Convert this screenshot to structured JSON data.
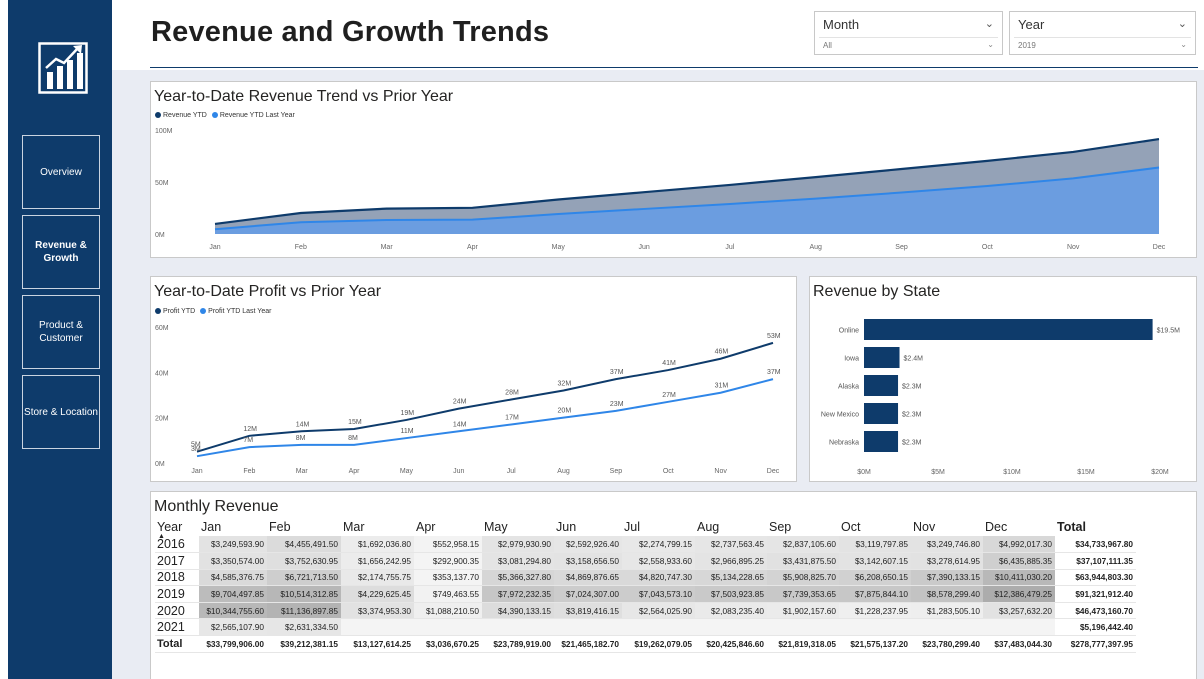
{
  "page": {
    "title": "Revenue and Growth Trends"
  },
  "nav": [
    {
      "label": "Overview",
      "active": false
    },
    {
      "label": "Revenue & Growth",
      "active": true
    },
    {
      "label": "Product & Customer",
      "active": false
    },
    {
      "label": "Store & Location",
      "active": false
    }
  ],
  "slicers": {
    "month": {
      "label": "Month",
      "value": "All"
    },
    "year": {
      "label": "Year",
      "value": "2019"
    }
  },
  "colors": {
    "sidebar": "#0e3b6b",
    "current": "#0e3b6b",
    "prior": "#2f86e8",
    "prior_area": "#6b9de0",
    "current_area": "#8e9db3",
    "bar": "#0e3b6b"
  },
  "revenue_chart": {
    "title": "Year-to-Date Revenue Trend vs Prior Year",
    "legend": [
      "Revenue YTD",
      "Revenue YTD Last Year"
    ],
    "y_ticks": [
      "0M",
      "50M",
      "100M"
    ],
    "months": [
      "Jan",
      "Feb",
      "Mar",
      "Apr",
      "May",
      "Jun",
      "Jul",
      "Aug",
      "Sep",
      "Oct",
      "Nov",
      "Dec"
    ]
  },
  "profit_chart": {
    "title": "Year-to-Date Profit vs Prior Year",
    "legend": [
      "Profit YTD",
      "Profit YTD Last Year"
    ],
    "y_ticks": [
      "0M",
      "20M",
      "40M",
      "60M"
    ],
    "months": [
      "Jan",
      "Feb",
      "Mar",
      "Apr",
      "May",
      "Jun",
      "Jul",
      "Aug",
      "Sep",
      "Oct",
      "Nov",
      "Dec"
    ]
  },
  "state_chart": {
    "title": "Revenue by State",
    "x_ticks": [
      "$0M",
      "$5M",
      "$10M",
      "$15M",
      "$20M"
    ]
  },
  "chart_data": [
    {
      "type": "area",
      "title": "Year-to-Date Revenue Trend vs Prior Year",
      "categories": [
        "Jan",
        "Feb",
        "Mar",
        "Apr",
        "May",
        "Jun",
        "Jul",
        "Aug",
        "Sep",
        "Oct",
        "Nov",
        "Dec"
      ],
      "ylim": [
        0,
        100
      ],
      "series": [
        {
          "name": "Revenue YTD",
          "values": [
            9.7,
            20.2,
            24.4,
            25.2,
            33.2,
            40.2,
            47.2,
            54.7,
            62.5,
            70.3,
            78.9,
            91.3
          ]
        },
        {
          "name": "Revenue YTD Last Year",
          "values": [
            4.6,
            11.3,
            13.5,
            13.8,
            19.2,
            24.1,
            28.9,
            34.0,
            39.9,
            46.1,
            53.5,
            63.9
          ]
        }
      ]
    },
    {
      "type": "line",
      "title": "Year-to-Date Profit vs Prior Year",
      "categories": [
        "Jan",
        "Feb",
        "Mar",
        "Apr",
        "May",
        "Jun",
        "Jul",
        "Aug",
        "Sep",
        "Oct",
        "Nov",
        "Dec"
      ],
      "ylim": [
        0,
        60
      ],
      "series": [
        {
          "name": "Profit YTD",
          "values": [
            5,
            12,
            14,
            15,
            19,
            24,
            28,
            32,
            37,
            41,
            46,
            53
          ],
          "labels": [
            "5M",
            "12M",
            "14M",
            "15M",
            "19M",
            "24M",
            "28M",
            "32M",
            "37M",
            "41M",
            "46M",
            "53M"
          ]
        },
        {
          "name": "Profit YTD Last Year",
          "values": [
            3,
            7,
            8,
            8,
            11,
            14,
            17,
            20,
            23,
            27,
            31,
            37
          ],
          "labels": [
            "3M",
            "7M",
            "8M",
            "8M",
            "11M",
            "14M",
            "17M",
            "20M",
            "23M",
            "27M",
            "31M",
            "37M"
          ]
        }
      ]
    },
    {
      "type": "bar",
      "title": "Revenue by State",
      "categories": [
        "Online",
        "Iowa",
        "Alaska",
        "New Mexico",
        "Nebraska"
      ],
      "values": [
        19.5,
        2.4,
        2.3,
        2.3,
        2.3
      ],
      "labels": [
        "$19.5M",
        "$2.4M",
        "$2.3M",
        "$2.3M",
        "$2.3M"
      ],
      "xlim": [
        0,
        20
      ]
    }
  ],
  "monthly_table": {
    "title": "Monthly Revenue",
    "year_header": "Year",
    "sort_glyph": "▲",
    "columns": [
      "Jan",
      "Feb",
      "Mar",
      "Apr",
      "May",
      "Jun",
      "Jul",
      "Aug",
      "Sep",
      "Oct",
      "Nov",
      "Dec",
      "Total"
    ],
    "rows": [
      {
        "year": "2016",
        "values": [
          "$3,249,593.90",
          "$4,455,491.50",
          "$1,692,036.80",
          "$552,958.15",
          "$2,979,930.90",
          "$2,592,926.40",
          "$2,274,799.15",
          "$2,737,563.45",
          "$2,837,105.60",
          "$3,119,797.85",
          "$3,249,746.80",
          "$4,992,017.30",
          "$34,733,967.80"
        ]
      },
      {
        "year": "2017",
        "values": [
          "$3,350,574.00",
          "$3,752,630.95",
          "$1,656,242.95",
          "$292,900.35",
          "$3,081,294.80",
          "$3,158,656.50",
          "$2,558,933.60",
          "$2,966,895.25",
          "$3,431,875.50",
          "$3,142,607.15",
          "$3,278,614.95",
          "$6,435,885.35",
          "$37,107,111.35"
        ]
      },
      {
        "year": "2018",
        "values": [
          "$4,585,376.75",
          "$6,721,713.50",
          "$2,174,755.75",
          "$353,137.70",
          "$5,366,327.80",
          "$4,869,876.65",
          "$4,820,747.30",
          "$5,134,228.65",
          "$5,908,825.70",
          "$6,208,650.15",
          "$7,390,133.15",
          "$10,411,030.20",
          "$63,944,803.30"
        ]
      },
      {
        "year": "2019",
        "values": [
          "$9,704,497.85",
          "$10,514,312.85",
          "$4,229,625.45",
          "$749,463.55",
          "$7,972,232.35",
          "$7,024,307.00",
          "$7,043,573.10",
          "$7,503,923.85",
          "$7,739,353.65",
          "$7,875,844.10",
          "$8,578,299.40",
          "$12,386,479.25",
          "$91,321,912.40"
        ]
      },
      {
        "year": "2020",
        "values": [
          "$10,344,755.60",
          "$11,136,897.85",
          "$3,374,953.30",
          "$1,088,210.50",
          "$4,390,133.15",
          "$3,819,416.15",
          "$2,564,025.90",
          "$2,083,235.40",
          "$1,902,157.60",
          "$1,228,237.95",
          "$1,283,505.10",
          "$3,257,632.20",
          "$46,473,160.70"
        ]
      },
      {
        "year": "2021",
        "values": [
          "$2,565,107.90",
          "$2,631,334.50",
          "",
          "",
          "",
          "",
          "",
          "",
          "",
          "",
          "",
          "",
          "$5,196,442.40"
        ]
      }
    ],
    "total_row": {
      "label": "Total",
      "values": [
        "$33,799,906.00",
        "$39,212,381.15",
        "$13,127,614.25",
        "$3,036,670.25",
        "$23,789,919.00",
        "$21,465,182.70",
        "$19,262,079.05",
        "$20,425,846.60",
        "$21,819,318.05",
        "$21,575,137.20",
        "$23,780,299.40",
        "$37,483,044.30",
        "$278,777,397.95"
      ]
    }
  }
}
